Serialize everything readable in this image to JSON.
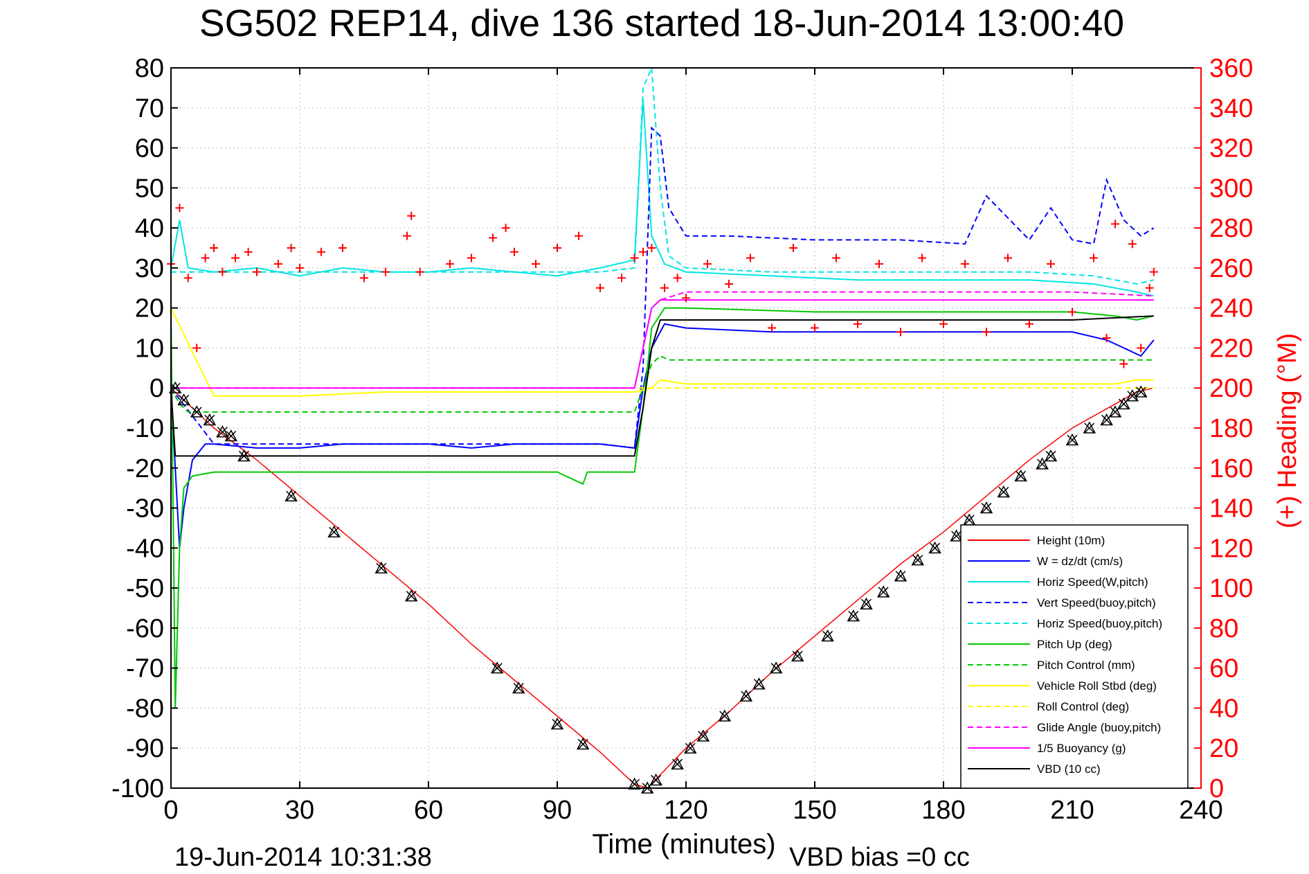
{
  "chart_data": {
    "type": "line",
    "title": "SG502 REP14, dive 136 started 18-Jun-2014 13:00:40",
    "xlabel": "Time (minutes)",
    "ylabel_right": "(+) Heading (°M)",
    "footer_left": "19-Jun-2014 10:31:38",
    "footer_right": "VBD bias =0 cc",
    "xlim": [
      0,
      240
    ],
    "ylim": [
      -100,
      80
    ],
    "y2lim": [
      0,
      360
    ],
    "xticks": [
      "0",
      "30",
      "60",
      "90",
      "120",
      "150",
      "180",
      "210",
      "240"
    ],
    "yticks": [
      "80",
      "70",
      "60",
      "50",
      "40",
      "30",
      "20",
      "10",
      "0",
      "-10",
      "-20",
      "-30",
      "-40",
      "-50",
      "-60",
      "-70",
      "-80",
      "-90",
      "-100"
    ],
    "y2ticks": [
      "360",
      "340",
      "320",
      "300",
      "280",
      "260",
      "240",
      "220",
      "200",
      "180",
      "160",
      "140",
      "120",
      "100",
      "80",
      "60",
      "40",
      "20",
      "0"
    ],
    "grid": true,
    "legend_position": "bottom-right",
    "colors": {
      "axis": "#000000",
      "right_axis": "#ff0000",
      "grid": "#bdbdbd"
    },
    "series": [
      {
        "name": "Height (10m)",
        "color": "#ff0000",
        "style": "solid",
        "x": [
          0,
          10,
          20,
          30,
          40,
          50,
          60,
          70,
          80,
          90,
          100,
          108,
          111,
          120,
          130,
          140,
          150,
          160,
          170,
          180,
          190,
          200,
          210,
          220,
          225,
          229
        ],
        "y": [
          0,
          -10,
          -18,
          -27,
          -36,
          -45,
          -54,
          -64,
          -73,
          -82,
          -91,
          -99,
          -100,
          -90,
          -81,
          -71,
          -62,
          -53,
          -44,
          -36,
          -27,
          -18,
          -10,
          -4,
          -1,
          0
        ]
      },
      {
        "name": "W = dz/dt (cm/s)",
        "color": "#0000ff",
        "style": "solid",
        "x": [
          0,
          1,
          2,
          3,
          5,
          8,
          10,
          20,
          30,
          40,
          50,
          60,
          70,
          80,
          90,
          100,
          108,
          110,
          112,
          115,
          120,
          140,
          160,
          180,
          190,
          200,
          210,
          218,
          222,
          226,
          229
        ],
        "y": [
          0,
          -20,
          -40,
          -30,
          -18,
          -14,
          -14,
          -15,
          -15,
          -14,
          -14,
          -14,
          -15,
          -14,
          -14,
          -14,
          -15,
          0,
          10,
          16,
          15,
          14,
          14,
          14,
          14,
          14,
          14,
          12,
          10,
          8,
          12
        ]
      },
      {
        "name": "Horiz Speed(W,pitch)",
        "color": "#00e5e5",
        "style": "solid",
        "x": [
          0,
          2,
          4,
          10,
          20,
          30,
          40,
          50,
          60,
          70,
          80,
          90,
          100,
          108,
          110,
          112,
          115,
          120,
          140,
          160,
          180,
          200,
          215,
          220,
          225,
          229
        ],
        "y": [
          30,
          42,
          30,
          29,
          30,
          28,
          30,
          29,
          29,
          30,
          29,
          28,
          30,
          32,
          72,
          38,
          31,
          29,
          28,
          27,
          27,
          27,
          26,
          25,
          24,
          23
        ]
      },
      {
        "name": "Vert Speed(buoy,pitch)",
        "color": "#0000ff",
        "style": "dashed",
        "x": [
          0,
          10,
          50,
          100,
          108,
          110,
          112,
          114,
          116,
          120,
          130,
          150,
          170,
          185,
          190,
          200,
          205,
          210,
          215,
          218,
          222,
          226,
          229
        ],
        "y": [
          0,
          -14,
          -14,
          -14,
          -15,
          5,
          65,
          63,
          45,
          38,
          38,
          37,
          37,
          36,
          48,
          37,
          45,
          37,
          36,
          52,
          42,
          38,
          40
        ]
      },
      {
        "name": "Horiz Speed(buoy,pitch)",
        "color": "#00e5e5",
        "style": "dashed",
        "x": [
          0,
          10,
          50,
          100,
          108,
          110,
          112,
          114,
          116,
          120,
          140,
          160,
          180,
          200,
          215,
          220,
          225,
          229
        ],
        "y": [
          29,
          29,
          29,
          29,
          30,
          75,
          80,
          50,
          33,
          30,
          29,
          29,
          29,
          29,
          28,
          27,
          26,
          27
        ]
      },
      {
        "name": "Pitch Up (deg)",
        "color": "#00c800",
        "style": "solid",
        "x": [
          0,
          1,
          2,
          3,
          5,
          10,
          20,
          30,
          50,
          90,
          96,
          97,
          108,
          110,
          112,
          115,
          120,
          150,
          180,
          210,
          220,
          225,
          229
        ],
        "y": [
          20,
          -80,
          -40,
          -25,
          -22,
          -21,
          -21,
          -21,
          -21,
          -21,
          -24,
          -21,
          -21,
          -5,
          15,
          20,
          20,
          19,
          19,
          19,
          18,
          17,
          18
        ]
      },
      {
        "name": "Pitch Control (mm)",
        "color": "#00c800",
        "style": "dashed",
        "x": [
          0,
          2,
          4,
          10,
          50,
          90,
          108,
          110,
          112,
          114,
          116,
          120,
          150,
          180,
          210,
          229
        ],
        "y": [
          0,
          -4,
          -6,
          -6,
          -6,
          -6,
          -6,
          0,
          6,
          8,
          7,
          7,
          7,
          7,
          7,
          7
        ]
      },
      {
        "name": "Vehicle Roll Stbd (deg)",
        "color": "#ffff00",
        "style": "solid",
        "x": [
          0,
          10,
          30,
          50,
          90,
          108,
          112,
          114,
          120,
          150,
          180,
          210,
          220,
          225,
          229
        ],
        "y": [
          20,
          -2,
          -2,
          -1,
          -1,
          -1,
          0,
          2,
          1,
          1,
          1,
          1,
          1,
          2,
          2
        ]
      },
      {
        "name": "Roll Control (deg)",
        "color": "#ffff00",
        "style": "dashed",
        "x": [
          0,
          10,
          30,
          50,
          90,
          108,
          112,
          120,
          150,
          180,
          210,
          229
        ],
        "y": [
          0,
          0,
          0,
          0,
          0,
          0,
          0,
          0,
          0,
          0,
          0,
          0
        ]
      },
      {
        "name": "Glide Angle (buoy,pitch)",
        "color": "#ff00ff",
        "style": "dashed",
        "x": [
          0,
          108,
          112,
          114,
          120,
          150,
          180,
          210,
          229
        ],
        "y": [
          0,
          0,
          20,
          22,
          24,
          24,
          24,
          24,
          23
        ]
      },
      {
        "name": "1/5 Buoyancy (g)",
        "color": "#ff00ff",
        "style": "solid",
        "x": [
          0,
          108,
          112,
          114,
          120,
          150,
          180,
          210,
          229
        ],
        "y": [
          0,
          0,
          20,
          22,
          22,
          22,
          22,
          22,
          22
        ]
      },
      {
        "name": "VBD (10 cc)",
        "color": "#000000",
        "style": "solid",
        "x": [
          0,
          1,
          2,
          10,
          50,
          90,
          108,
          110,
          112,
          114,
          120,
          150,
          180,
          210,
          229
        ],
        "y": [
          0,
          -17,
          -17,
          -17,
          -17,
          -17,
          -17,
          -5,
          10,
          17,
          17,
          17,
          17,
          17,
          18
        ]
      }
    ],
    "heading_series": {
      "name": "(+) Heading (°M)",
      "color": "#ff0000",
      "marker": "+",
      "axis": "right",
      "x": [
        0,
        2,
        4,
        6,
        8,
        10,
        12,
        15,
        18,
        20,
        25,
        28,
        30,
        35,
        40,
        45,
        50,
        55,
        56,
        58,
        65,
        70,
        75,
        78,
        80,
        85,
        90,
        95,
        100,
        105,
        108,
        110,
        112,
        115,
        118,
        120,
        125,
        130,
        135,
        140,
        145,
        150,
        155,
        160,
        165,
        170,
        175,
        180,
        185,
        190,
        195,
        200,
        205,
        210,
        215,
        218,
        220,
        222,
        224,
        226,
        228,
        229
      ],
      "y": [
        262,
        290,
        255,
        220,
        265,
        270,
        258,
        265,
        268,
        258,
        262,
        270,
        260,
        268,
        270,
        255,
        258,
        276,
        286,
        258,
        262,
        265,
        275,
        280,
        268,
        262,
        270,
        276,
        250,
        255,
        265,
        268,
        270,
        250,
        255,
        245,
        262,
        252,
        265,
        230,
        270,
        230,
        265,
        232,
        262,
        228,
        265,
        232,
        262,
        228,
        265,
        232,
        262,
        238,
        265,
        225,
        282,
        212,
        272,
        220,
        250,
        258
      ]
    },
    "dive_markers": {
      "marker": "triangle-x",
      "color": "#000000",
      "x": [
        1,
        3,
        6,
        9,
        12,
        14,
        17,
        28,
        38,
        49,
        56,
        76,
        81,
        90,
        96,
        108,
        111,
        113,
        118,
        121,
        124,
        129,
        134,
        137,
        141,
        146,
        153,
        159,
        162,
        166,
        170,
        174,
        178,
        183,
        186,
        190,
        194,
        198,
        203,
        205,
        210,
        214,
        218,
        220,
        222,
        224,
        226
      ],
      "y": [
        0,
        -3,
        -6,
        -8,
        -11,
        -12,
        -17,
        -27,
        -36,
        -45,
        -52,
        -70,
        -75,
        -84,
        -89,
        -99,
        -100,
        -98,
        -94,
        -90,
        -87,
        -82,
        -77,
        -74,
        -70,
        -67,
        -62,
        -57,
        -54,
        -51,
        -47,
        -43,
        -40,
        -37,
        -33,
        -30,
        -26,
        -22,
        -19,
        -17,
        -13,
        -10,
        -8,
        -6,
        -4,
        -2,
        -1
      ]
    }
  }
}
